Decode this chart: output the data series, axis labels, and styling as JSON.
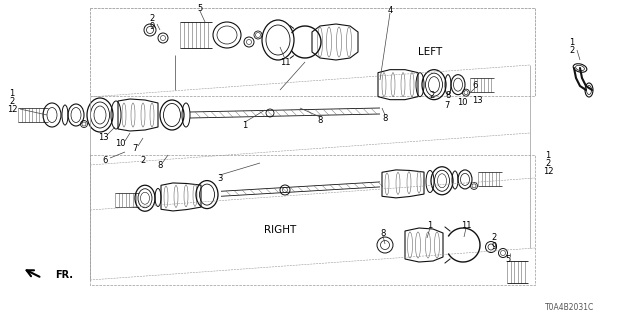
{
  "bg_color": "#ffffff",
  "line_color": "#111111",
  "gray_color": "#666666",
  "light_gray": "#aaaaaa",
  "diagram_id": "T0A4B2031C",
  "fr_label": "FR.",
  "left_label": "LEFT",
  "right_label": "RIGHT",
  "labels": {
    "top_left_1": "1",
    "top_left_2": "2",
    "top_left_12": "12",
    "lbl5_top": "5",
    "lbl4": "4",
    "lbl2_9_top": [
      "2",
      "9"
    ],
    "lbl11": "11",
    "lbl1_mid": "1",
    "lbl8_mid": "8",
    "lbl13_left": "13",
    "lbl10": "10",
    "lbl7": "7",
    "lbl6_left": "6",
    "lbl2_left": "2",
    "lbl8_left": "8",
    "lbl3": "3",
    "lbl1_2_tr": [
      "1",
      "2"
    ],
    "lbl6_right": "6",
    "lbl2_right": "2",
    "lbl8_right": "8",
    "lbl7_right": "7",
    "lbl10_right": "10",
    "lbl13_right": "13",
    "lbl8_bot": "8",
    "lbl1_bot": "1",
    "lbl11_bot": "11",
    "lbl2_bot": "2",
    "lbl9_bot": "9",
    "lbl5_bot": "5",
    "lbl1_r": "1",
    "lbl2_r": "2",
    "lbl12_r": "12"
  }
}
